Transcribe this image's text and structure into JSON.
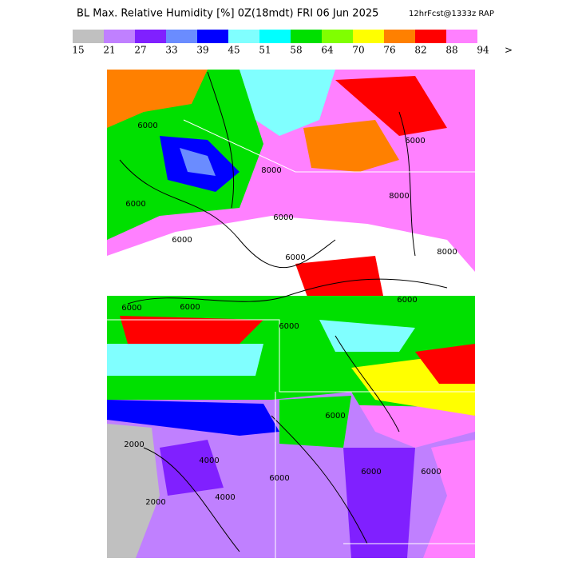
{
  "header": {
    "title": "BL Max. Relative Humidity [%] 0Z(18mdt) FRI 06 Jun 2025",
    "run": "12hrFcst@1333z RAP"
  },
  "legend": {
    "colors": [
      "#c0c0c0",
      "#c080ff",
      "#8020ff",
      "#6a8cff",
      "#0000ff",
      "#80ffff",
      "#00ffff",
      "#00e000",
      "#80ff00",
      "#ffff00",
      "#ff8000",
      "#ff0000",
      "#ff80ff"
    ],
    "labels": [
      15,
      21,
      27,
      33,
      39,
      45,
      51,
      58,
      64,
      70,
      76,
      82,
      88,
      94,
      ">"
    ]
  },
  "map": {
    "contour_labels": [
      "6000",
      "8000",
      "6000",
      "6000",
      "8000",
      "6000",
      "6000",
      "6000",
      "6000",
      "8000",
      "6000",
      "6000",
      "2000",
      "4000",
      "2000",
      "4000",
      "6000",
      "6000",
      "6000",
      "6000",
      "6000"
    ]
  }
}
